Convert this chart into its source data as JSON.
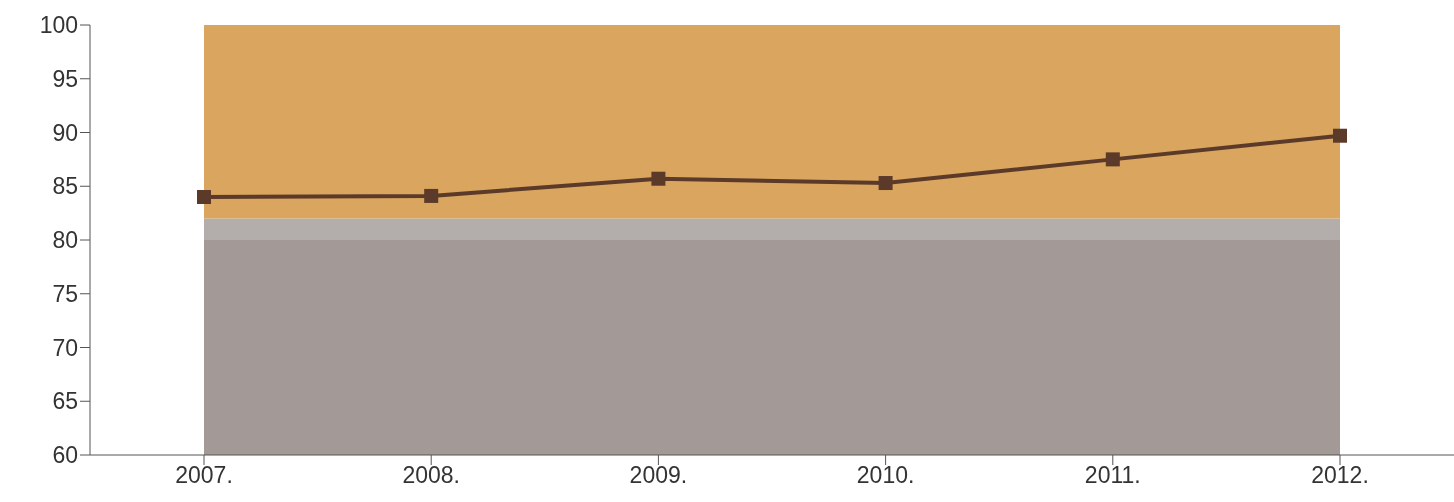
{
  "chart_data": {
    "type": "line",
    "categories": [
      "2007.",
      "2008.",
      "2009.",
      "2010.",
      "2011.",
      "2012."
    ],
    "series": [
      {
        "color": "#5b3a29",
        "values": [
          84.0,
          84.1,
          85.7,
          85.3,
          87.5,
          89.7
        ]
      }
    ],
    "ylim": [
      60,
      100
    ],
    "yticks": [
      60,
      65,
      70,
      75,
      80,
      85,
      90,
      95,
      100
    ],
    "bands": [
      {
        "axis": "y",
        "from": 60,
        "to": 80,
        "color": "#a39a98"
      },
      {
        "axis": "y",
        "from": 80,
        "to": 82,
        "color": "#b3aeab"
      },
      {
        "axis": "y",
        "from": 82,
        "to": 100,
        "color": "#d9a55f"
      }
    ],
    "grid": false,
    "legend": false,
    "marker": "square",
    "line_style": "solid"
  }
}
